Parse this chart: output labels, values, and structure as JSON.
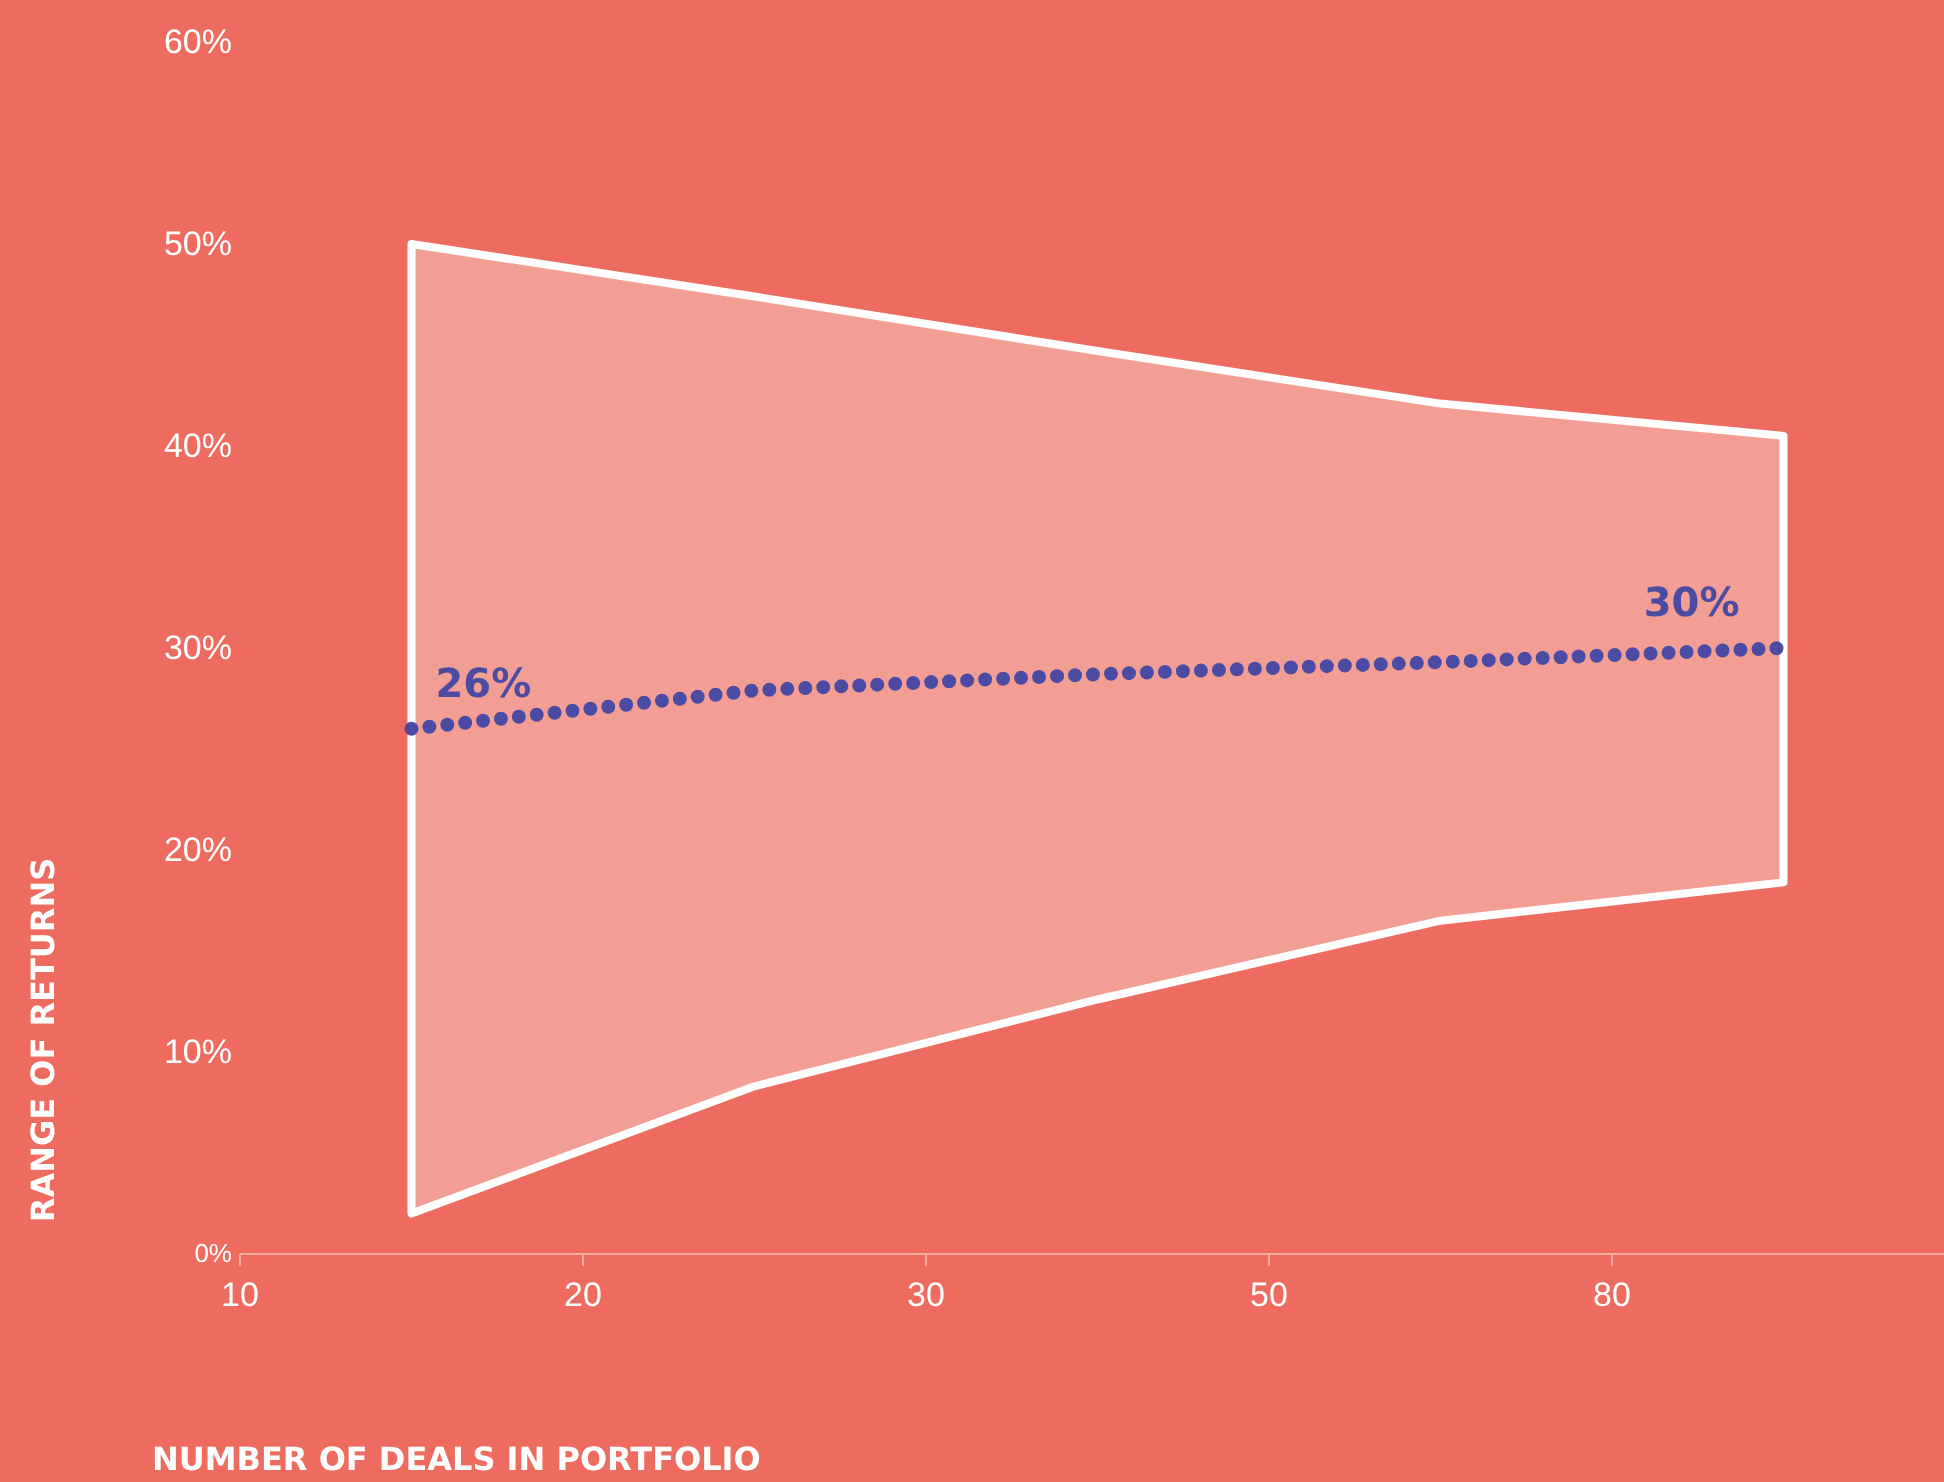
{
  "chart_data": {
    "type": "line",
    "xlabel": "NUMBER OF DEALS IN PORTFOLIO",
    "ylabel": "RANGE OF RETURNS",
    "categories": [
      "10",
      null,
      "20",
      null,
      "30",
      null,
      "50",
      null,
      "80",
      null
    ],
    "series": [
      {
        "color": "#4b4ba3",
        "values": [
          null,
          26,
          null,
          27.9,
          null,
          28.7,
          null,
          29.3,
          null,
          30
        ],
        "value_labels": [
          null,
          "26%",
          null,
          null,
          null,
          null,
          null,
          null,
          null,
          "30%"
        ],
        "lower": [
          null,
          2,
          null,
          8.3,
          null,
          12.6,
          null,
          16.5,
          null,
          18.4
        ],
        "upper": [
          null,
          50,
          null,
          47.4,
          null,
          44.7,
          null,
          42.1,
          null,
          40.5
        ]
      }
    ],
    "ylim": [
      0,
      60
    ],
    "yticks": [
      {
        "value": 0,
        "label": "0%"
      },
      {
        "value": 10,
        "label": "10%"
      },
      {
        "value": 20,
        "label": "20%"
      },
      {
        "value": 30,
        "label": "30%"
      },
      {
        "value": 40,
        "label": "40%"
      },
      {
        "value": 50,
        "label": "50%"
      },
      {
        "value": 60,
        "label": "60%"
      }
    ],
    "line_style": "dotted"
  }
}
